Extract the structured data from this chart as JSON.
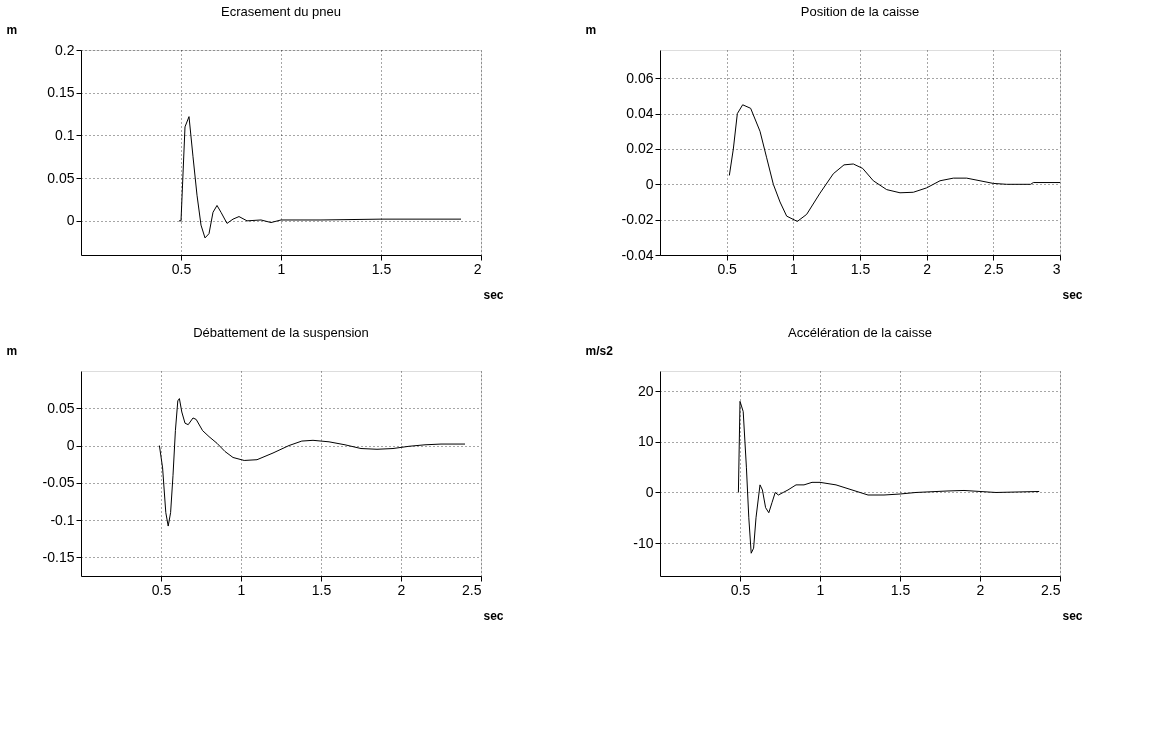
{
  "chart_data": [
    {
      "type": "line",
      "title": "Ecrasement du pneu",
      "ylabel": "m",
      "xlabel": "sec",
      "xlim": [
        0,
        2
      ],
      "ylim": [
        -0.04,
        0.2
      ],
      "xticks": [
        0.5,
        1,
        1.5,
        2
      ],
      "yticks": [
        0,
        0.05,
        0.1,
        0.15,
        0.2
      ],
      "grid": true,
      "line_style": "solid",
      "series": [
        {
          "color": "#000000",
          "x": [
            0.49,
            0.5,
            0.52,
            0.54,
            0.56,
            0.58,
            0.6,
            0.62,
            0.64,
            0.66,
            0.68,
            0.7,
            0.73,
            0.76,
            0.79,
            0.83,
            0.9,
            0.95,
            1.0,
            1.2,
            1.5,
            1.9
          ],
          "values": [
            0,
            0.0,
            0.11,
            0.122,
            0.075,
            0.03,
            -0.005,
            -0.02,
            -0.015,
            0.01,
            0.018,
            0.01,
            -0.003,
            0.002,
            0.005,
            0.0,
            0.001,
            -0.002,
            0.001,
            0.001,
            0.002,
            0.002
          ]
        }
      ]
    },
    {
      "type": "line",
      "title": "Position de la caisse",
      "ylabel": "m",
      "xlabel": "sec",
      "xlim": [
        0,
        3
      ],
      "ylim": [
        -0.04,
        0.076
      ],
      "xticks": [
        0.5,
        1,
        1.5,
        2,
        2.5,
        3
      ],
      "yticks": [
        -0.04,
        -0.02,
        0,
        0.02,
        0.04,
        0.06
      ],
      "grid": true,
      "line_style": "solid",
      "series": [
        {
          "color": "#000000",
          "x": [
            0.52,
            0.55,
            0.58,
            0.62,
            0.68,
            0.75,
            0.8,
            0.85,
            0.9,
            0.95,
            1.03,
            1.1,
            1.2,
            1.3,
            1.38,
            1.45,
            1.52,
            1.6,
            1.7,
            1.8,
            1.9,
            2.0,
            2.1,
            2.2,
            2.3,
            2.4,
            2.5,
            2.6,
            2.78,
            2.8,
            3.0
          ],
          "values": [
            0.005,
            0.02,
            0.04,
            0.045,
            0.043,
            0.03,
            0.015,
            0.0,
            -0.01,
            -0.018,
            -0.021,
            -0.017,
            -0.005,
            0.006,
            0.011,
            0.0115,
            0.009,
            0.002,
            -0.003,
            -0.0048,
            -0.0045,
            -0.002,
            0.002,
            0.0035,
            0.0035,
            0.002,
            0.0005,
            0.0,
            0.0,
            0.001,
            0.001
          ]
        }
      ]
    },
    {
      "type": "line",
      "title": "Débattement de la suspension",
      "ylabel": "m",
      "xlabel": "sec",
      "xlim": [
        0,
        2.5
      ],
      "ylim": [
        -0.175,
        0.1
      ],
      "xticks": [
        0.5,
        1,
        1.5,
        2,
        2.5
      ],
      "yticks": [
        -0.15,
        -0.1,
        -0.05,
        0,
        0.05
      ],
      "grid": true,
      "line_style": "solid",
      "series": [
        {
          "color": "#000000",
          "x": [
            0.49,
            0.51,
            0.53,
            0.545,
            0.56,
            0.575,
            0.59,
            0.605,
            0.615,
            0.63,
            0.65,
            0.67,
            0.7,
            0.72,
            0.76,
            0.8,
            0.85,
            0.9,
            0.95,
            1.02,
            1.1,
            1.2,
            1.3,
            1.38,
            1.45,
            1.55,
            1.65,
            1.75,
            1.85,
            1.95,
            2.05,
            2.15,
            2.25,
            2.4
          ],
          "values": [
            0.0,
            -0.03,
            -0.09,
            -0.108,
            -0.09,
            -0.04,
            0.02,
            0.06,
            0.063,
            0.045,
            0.03,
            0.028,
            0.037,
            0.035,
            0.02,
            0.012,
            0.003,
            -0.008,
            -0.016,
            -0.02,
            -0.019,
            -0.01,
            0.0,
            0.006,
            0.007,
            0.005,
            0.001,
            -0.004,
            -0.005,
            -0.004,
            -0.001,
            0.001,
            0.002,
            0.002
          ]
        }
      ]
    },
    {
      "type": "line",
      "title": "Accélération de la caisse",
      "ylabel": "m/s2",
      "xlabel": "sec",
      "xlim": [
        0,
        2.5
      ],
      "ylim": [
        -16.5,
        24
      ],
      "xticks": [
        0.5,
        1,
        1.5,
        2,
        2.5
      ],
      "yticks": [
        -10,
        0,
        10,
        20
      ],
      "grid": true,
      "line_style": "solid",
      "series": [
        {
          "color": "#000000",
          "x": [
            0.49,
            0.5,
            0.52,
            0.54,
            0.555,
            0.57,
            0.585,
            0.6,
            0.625,
            0.64,
            0.66,
            0.68,
            0.7,
            0.72,
            0.74,
            0.77,
            0.8,
            0.85,
            0.9,
            0.95,
            1.0,
            1.1,
            1.2,
            1.3,
            1.4,
            1.5,
            1.6,
            1.8,
            1.9,
            2.0,
            2.1,
            2.37
          ],
          "values": [
            0,
            18,
            16,
            5,
            -5,
            -12,
            -11,
            -5,
            1.5,
            0.5,
            -3,
            -4,
            -2,
            0,
            -0.5,
            0,
            0.5,
            1.5,
            1.5,
            2,
            2,
            1.5,
            0.5,
            -0.5,
            -0.5,
            -0.3,
            0,
            0.3,
            0.4,
            0.2,
            0,
            0.2
          ]
        }
      ]
    }
  ]
}
